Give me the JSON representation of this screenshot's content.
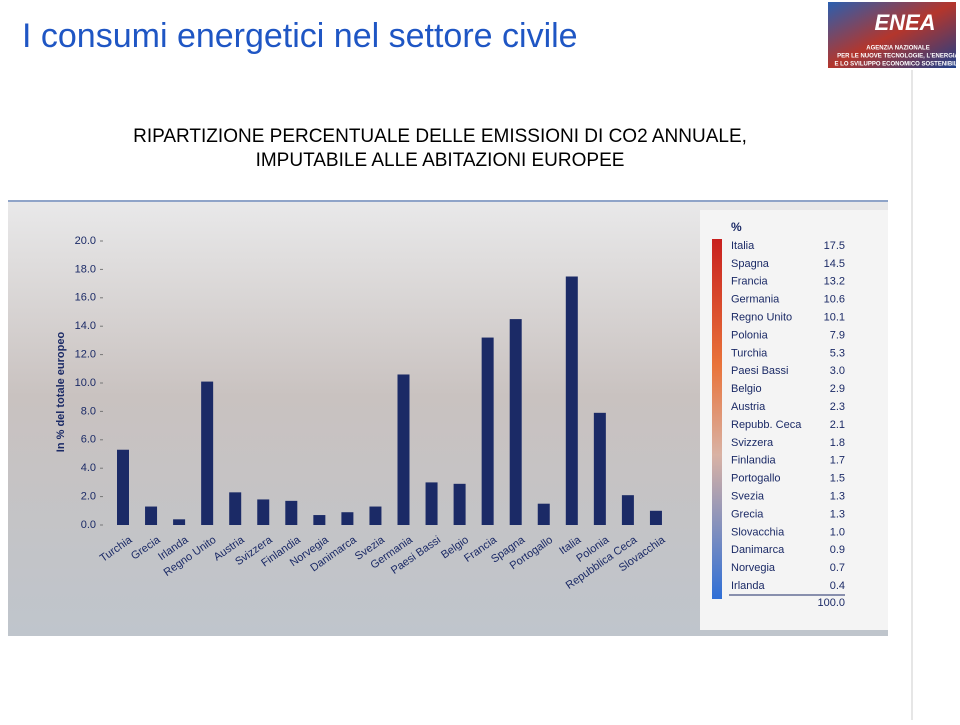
{
  "header": {
    "title": "I consumi energetici nel settore civile",
    "logo": "ENEA",
    "logo_caption": [
      "AGENZIA NAZIONALE",
      "PER LE NUOVE TECNOLOGIE, L'ENERGIA",
      "E LO SVILUPPO ECONOMICO SOSTENIBILE"
    ]
  },
  "chart_data": {
    "type": "bar",
    "title": [
      "RIPARTIZIONE PERCENTUALE DELLE EMISSIONI DI CO2 ANNUALE,",
      "IMPUTABILE ALLE ABITAZIONI EUROPEE"
    ],
    "y_label": "In % del totale europeo",
    "categories": [
      "Turchia",
      "Grecia",
      "Irlanda",
      "Regno Unito",
      "Austria",
      "Svizzera",
      "Finlandia",
      "Norvegia",
      "Danimarca",
      "Svezia",
      "Germania",
      "Paesi Bassi",
      "Belgio",
      "Francia",
      "Spagna",
      "Portogallo",
      "Italia",
      "Polonia",
      "Repubblica Ceca",
      "Slovacchia"
    ],
    "values": [
      5.3,
      1.3,
      0.4,
      10.1,
      2.3,
      1.8,
      1.7,
      0.7,
      0.9,
      1.3,
      10.6,
      3.0,
      2.9,
      13.2,
      14.5,
      1.5,
      17.5,
      7.9,
      2.1,
      1.0
    ],
    "color": "#1b2a66",
    "ylim": [
      0,
      20
    ],
    "yticks": [
      {
        "value": 0,
        "label": "0.0"
      },
      {
        "value": 2,
        "label": "2.0"
      },
      {
        "value": 4,
        "label": "4.0"
      },
      {
        "value": 6,
        "label": "6.0"
      },
      {
        "value": 8,
        "label": "8.0"
      },
      {
        "value": 10,
        "label": "10.0"
      },
      {
        "value": 12,
        "label": "12.0"
      },
      {
        "value": 14,
        "label": "14.0"
      },
      {
        "value": 16,
        "label": "16.0"
      },
      {
        "value": 18,
        "label": "18.0"
      },
      {
        "value": 20,
        "label": "20.0"
      }
    ]
  },
  "table": {
    "header": "%",
    "rows": [
      [
        "Italia",
        "17.5"
      ],
      [
        "Spagna",
        "14.5"
      ],
      [
        "Francia",
        "13.2"
      ],
      [
        "Germania",
        "10.6"
      ],
      [
        "Regno Unito",
        "10.1"
      ],
      [
        "Polonia",
        "7.9"
      ],
      [
        "Turchia",
        "5.3"
      ],
      [
        "Paesi Bassi",
        "3.0"
      ],
      [
        "Belgio",
        "2.9"
      ],
      [
        "Austria",
        "2.3"
      ],
      [
        "Repubb. Ceca",
        "2.1"
      ],
      [
        "Svizzera",
        "1.8"
      ],
      [
        "Finlandia",
        "1.7"
      ],
      [
        "Portogallo",
        "1.5"
      ],
      [
        "Svezia",
        "1.3"
      ],
      [
        "Grecia",
        "1.3"
      ],
      [
        "Slovacchia",
        "1.0"
      ],
      [
        "Danimarca",
        "0.9"
      ],
      [
        "Norvegia",
        "0.7"
      ],
      [
        "Irlanda",
        "0.4"
      ]
    ],
    "total": "100.0"
  }
}
